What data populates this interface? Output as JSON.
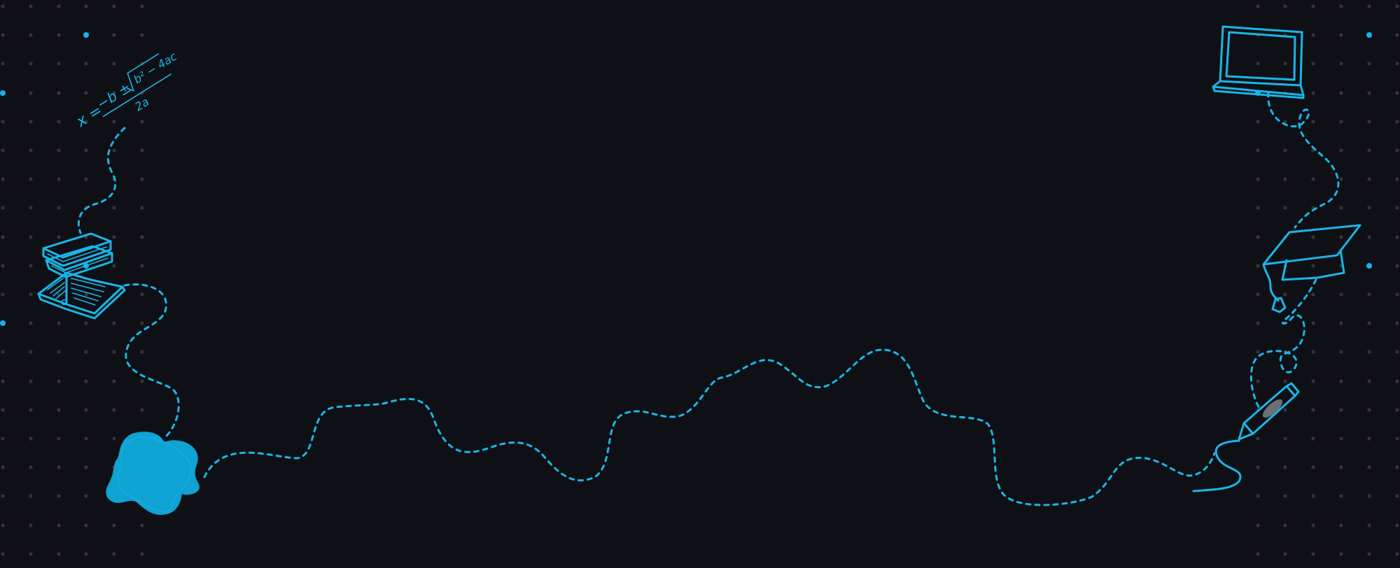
{
  "colors": {
    "background": "#0e1015",
    "accent": "#19b6e8",
    "accent_fill": "#0ea3d2",
    "dot": "#3a3236",
    "dot_highlight": "#12b7ec",
    "pencil_core": "#6b6f73"
  },
  "formula": {
    "lhs": "x =",
    "numerator_left": "−b ±",
    "radicand": "b² − 4ac",
    "denominator": "2a"
  },
  "icons": [
    "quadratic-formula-doodle",
    "stacked-books-icon",
    "open-book-icon",
    "paint-blob-icon",
    "laptop-icon",
    "graduation-cap-icon",
    "crayon-icon"
  ]
}
